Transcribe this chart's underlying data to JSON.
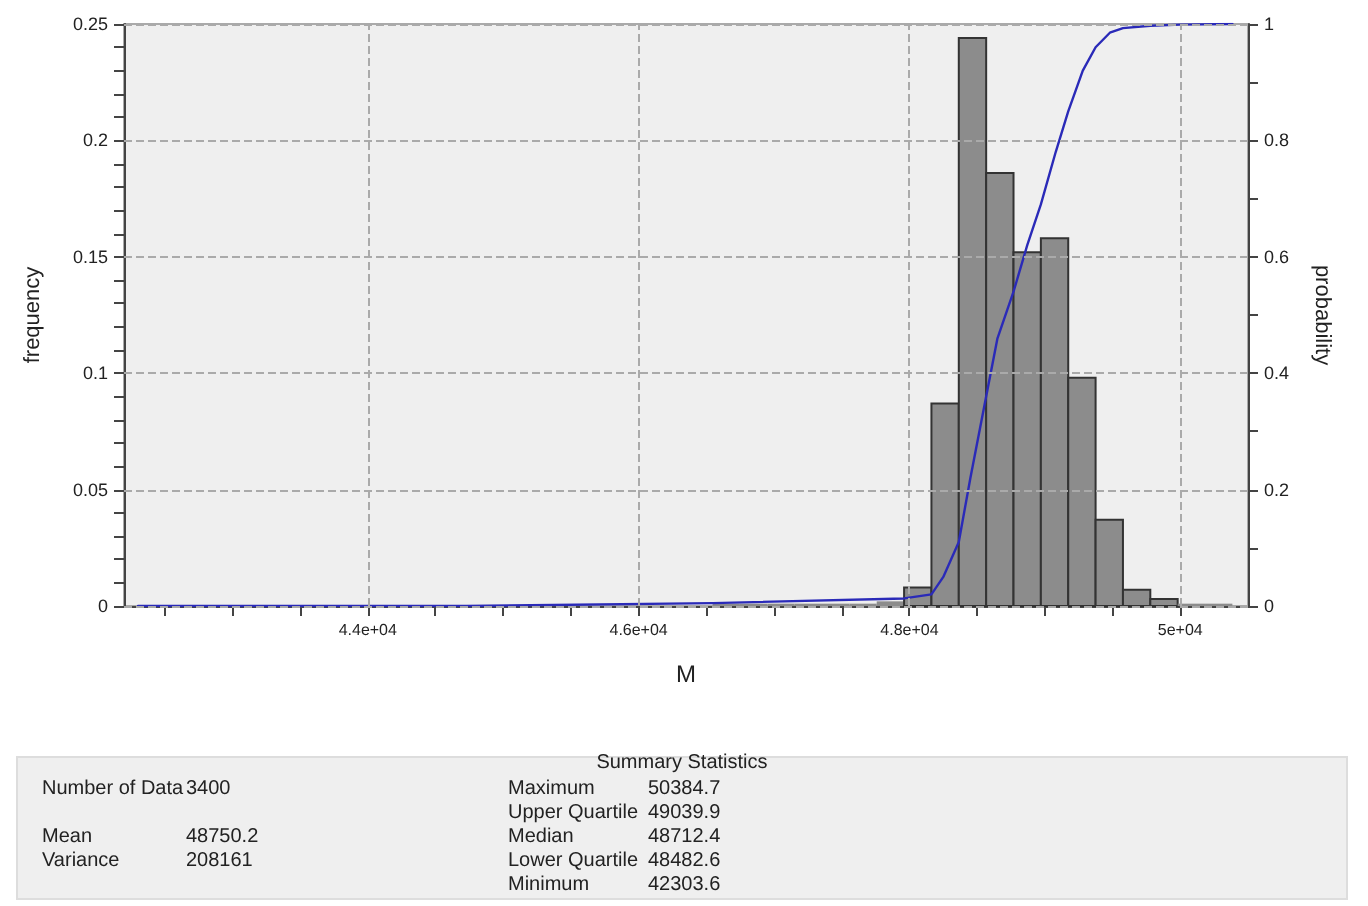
{
  "chart_data": {
    "type": "histogram",
    "xlabel": "M",
    "ylabel": "frequency",
    "y2label": "probability",
    "bins": [
      42303.6,
      42505.6,
      42707.7,
      42909.7,
      43111.7,
      43313.7,
      43515.8,
      43717.8,
      43919.8,
      44121.9,
      44323.9,
      44525.9,
      44727.9,
      44930.0,
      45132.0,
      45334.0,
      45536.0,
      45738.1,
      45940.1,
      46142.1,
      46344.2,
      46546.2,
      46748.2,
      46950.2,
      47152.3,
      47354.3,
      47556.3,
      47758.3,
      47960.4,
      48162.4,
      48364.4,
      48566.5,
      48768.5,
      48970.5,
      49172.5,
      49374.6,
      49576.6,
      49778.6,
      49980.7,
      50182.7,
      50384.7
    ],
    "series": [
      {
        "color": "#8c8c8c",
        "values": [
          0,
          0,
          0,
          0,
          0,
          0,
          0,
          0,
          0,
          0,
          0,
          0,
          0,
          0,
          0,
          0,
          0,
          0,
          0,
          0,
          0,
          0.001,
          0.001,
          0.001,
          0.001,
          0.001,
          0.001,
          0.002,
          0.008,
          0.087,
          0.244,
          0.186,
          0.152,
          0.158,
          0.098,
          0.037,
          0.007,
          0.003,
          0.001,
          0.001
        ]
      },
      {
        "type": "line",
        "axis": "y2",
        "color": "#2a2ab8",
        "x": [
          42303.6,
          44727.9,
          46546.2,
          47960.4,
          48162.4,
          48250,
          48364.4,
          48450,
          48566.5,
          48650,
          48768.5,
          48870,
          48970.5,
          49080,
          49172.5,
          49280,
          49374.6,
          49480,
          49576.6,
          49778.6,
          50000,
          50384.7
        ],
        "values": [
          0,
          0,
          0.005,
          0.013,
          0.02,
          0.05,
          0.11,
          0.22,
          0.36,
          0.46,
          0.54,
          0.62,
          0.69,
          0.78,
          0.85,
          0.92,
          0.96,
          0.985,
          0.993,
          0.997,
          0.999,
          1
        ]
      }
    ],
    "xlim": [
      42200,
      50500
    ],
    "xticks": [
      {
        "value": 42500,
        "label": null
      },
      {
        "value": 43000,
        "label": null
      },
      {
        "value": 43500,
        "label": null
      },
      {
        "value": 44000,
        "label": "4.4e+04"
      },
      {
        "value": 44500,
        "label": null
      },
      {
        "value": 45000,
        "label": null
      },
      {
        "value": 45500,
        "label": null
      },
      {
        "value": 46000,
        "label": "4.6e+04"
      },
      {
        "value": 46500,
        "label": null
      },
      {
        "value": 47000,
        "label": null
      },
      {
        "value": 47500,
        "label": null
      },
      {
        "value": 48000,
        "label": "4.8e+04"
      },
      {
        "value": 48500,
        "label": null
      },
      {
        "value": 49000,
        "label": null
      },
      {
        "value": 49500,
        "label": null
      },
      {
        "value": 50000,
        "label": "5e+04"
      }
    ],
    "ylim": [
      0,
      0.25
    ],
    "yticks": [
      0,
      {
        "value": 0.01,
        "label": null
      },
      {
        "value": 0.02,
        "label": null
      },
      {
        "value": 0.03,
        "label": null
      },
      {
        "value": 0.04,
        "label": null
      },
      0.05,
      {
        "value": 0.06,
        "label": null
      },
      {
        "value": 0.07,
        "label": null
      },
      {
        "value": 0.08,
        "label": null
      },
      {
        "value": 0.09,
        "label": null
      },
      0.1,
      {
        "value": 0.11,
        "label": null
      },
      {
        "value": 0.12,
        "label": null
      },
      {
        "value": 0.13,
        "label": null
      },
      {
        "value": 0.14,
        "label": null
      },
      0.15,
      {
        "value": 0.16,
        "label": null
      },
      {
        "value": 0.17,
        "label": null
      },
      {
        "value": 0.18,
        "label": null
      },
      {
        "value": 0.19,
        "label": null
      },
      0.2,
      {
        "value": 0.21,
        "label": null
      },
      {
        "value": 0.22,
        "label": null
      },
      {
        "value": 0.23,
        "label": null
      },
      {
        "value": 0.24,
        "label": null
      },
      0.25
    ],
    "y2lim": [
      0,
      1
    ],
    "y2ticks": [
      0,
      {
        "value": 0.1,
        "label": null
      },
      0.2,
      {
        "value": 0.3,
        "label": null
      },
      0.4,
      {
        "value": 0.5,
        "label": null
      },
      0.6,
      {
        "value": 0.7,
        "label": null
      },
      0.8,
      {
        "value": 0.9,
        "label": null
      },
      1
    ],
    "grid": true,
    "marker": "none",
    "line_style": "solid",
    "annotations": [
      "Summary Statistics",
      "Number of Data",
      "3400",
      "Mean",
      "48750.2",
      "Variance",
      "208161",
      "Maximum",
      "50384.7",
      "Upper Quartile",
      "49039.9",
      "Median",
      "48712.4",
      "Lower Quartile",
      "48482.6",
      "Minimum",
      "42303.6"
    ]
  }
}
